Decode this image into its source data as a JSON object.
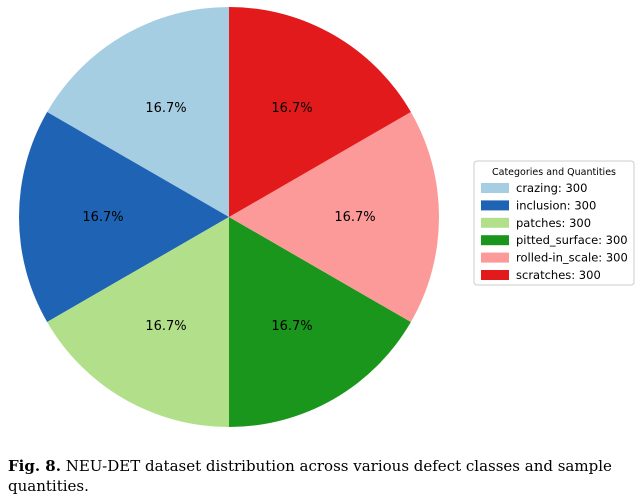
{
  "chart_data": {
    "type": "pie",
    "legend_title": "Categories and Quantities",
    "legend_position": "right",
    "start_angle_deg": 90,
    "direction": "counterclockwise",
    "slices": [
      {
        "category": "crazing",
        "value": 300,
        "label": "16.7%",
        "legend": "crazing: 300",
        "color": "#a6cee3"
      },
      {
        "category": "inclusion",
        "value": 300,
        "label": "16.7%",
        "legend": "inclusion: 300",
        "color": "#1f64b4"
      },
      {
        "category": "patches",
        "value": 300,
        "label": "16.7%",
        "legend": "patches: 300",
        "color": "#b2df8a"
      },
      {
        "category": "pitted_surface",
        "value": 300,
        "label": "16.7%",
        "legend": "pitted_surface: 300",
        "color": "#1a961c"
      },
      {
        "category": "rolled-in_scale",
        "value": 300,
        "label": "16.7%",
        "legend": "rolled-in_scale: 300",
        "color": "#fb9a99"
      },
      {
        "category": "scratches",
        "value": 300,
        "label": "16.7%",
        "legend": "scratches: 300",
        "color": "#e31a1c"
      }
    ]
  },
  "caption": {
    "label": "Fig. 8.",
    "text": "NEU-DET dataset distribution across various defect classes and sample quantities."
  }
}
